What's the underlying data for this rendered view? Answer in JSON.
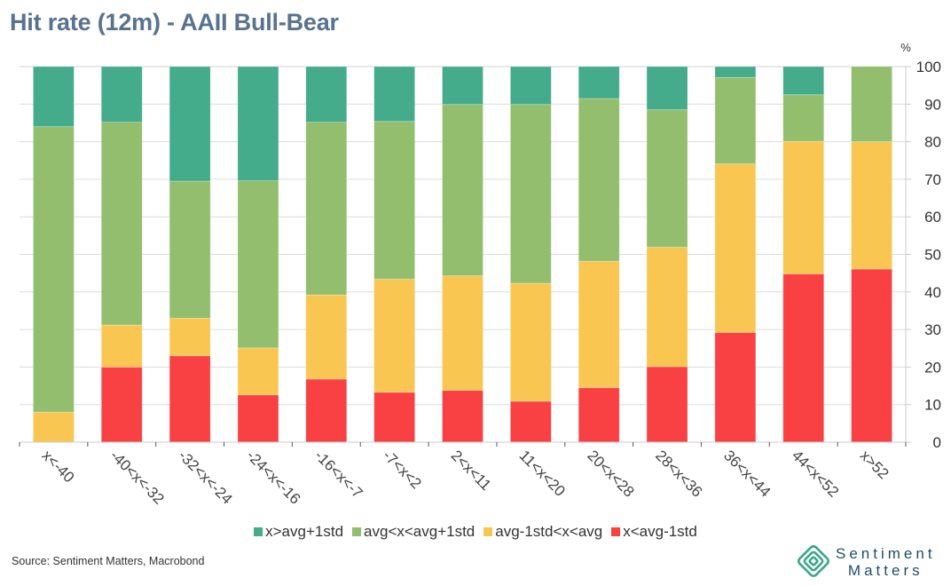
{
  "title": "Hit rate (12m) - AAII Bull-Bear",
  "source": "Source: Sentiment Matters, Macrobond",
  "logo": {
    "line1": "Sentiment",
    "line2": "Matters"
  },
  "chart_data": {
    "type": "bar",
    "stacked": true,
    "title": "Hit rate (12m) - AAII Bull-Bear",
    "xlabel": "",
    "ylabel": "%",
    "ylim": [
      0,
      100
    ],
    "yticks": [
      0,
      10,
      20,
      30,
      40,
      50,
      60,
      70,
      80,
      90,
      100
    ],
    "y_axis_side": "right",
    "grid": true,
    "legend_position": "bottom",
    "categories": [
      "x<-40",
      "-40<x<-32",
      "-32<x<-24",
      "-24<x<-16",
      "-16<x<-7",
      "-7<x<2",
      "2<x<11",
      "11<x<20",
      "20<x<28",
      "28<x<36",
      "36<x<44",
      "44<x<52",
      "x>52"
    ],
    "series": [
      {
        "name": "x<avg-1std",
        "color": "#f94144",
        "values": [
          0,
          20,
          23,
          12.6,
          16.8,
          13.3,
          13.8,
          10.9,
          14.5,
          20.1,
          29.2,
          44.8,
          46.1
        ]
      },
      {
        "name": "avg-1std<x<avg",
        "color": "#f8c651",
        "values": [
          8,
          11.2,
          10,
          12.5,
          22.4,
          30.1,
          30.5,
          31.4,
          33.7,
          31.8,
          44.9,
          35.3,
          33.9
        ]
      },
      {
        "name": "avg<x<avg+1std",
        "color": "#92be6e",
        "values": [
          76,
          54,
          36.5,
          44.5,
          46,
          42,
          45.6,
          47.6,
          43.3,
          36.6,
          23,
          12.4,
          20
        ]
      },
      {
        "name": "x>avg+1std",
        "color": "#44ab8b",
        "values": [
          16,
          14.8,
          30.5,
          30.4,
          14.8,
          14.6,
          10.1,
          10.1,
          8.5,
          11.5,
          2.9,
          7.5,
          0
        ]
      }
    ],
    "legend_order": [
      "x>avg+1std",
      "avg<x<avg+1std",
      "avg-1std<x<avg",
      "x<avg-1std"
    ]
  }
}
